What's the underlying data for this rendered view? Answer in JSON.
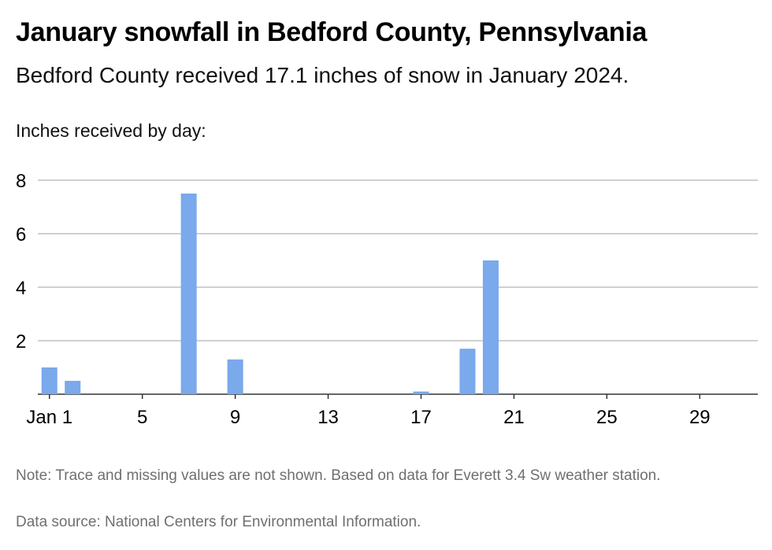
{
  "header": {
    "title": "January snowfall in Bedford County, Pennsylvania",
    "subtitle": "Bedford County received 17.1 inches of snow in January 2024."
  },
  "footer": {
    "note": "Note: Trace and missing values are not shown. Based on data for Everett 3.4 Sw weather station.",
    "source": "Data source: National Centers for Environmental Information."
  },
  "colors": {
    "bar": "#7aa9ec",
    "grid": "#b3b3b3",
    "axis": "#333333"
  },
  "chart_data": {
    "type": "bar",
    "ylabel": "Inches received by day:",
    "xlabel": "",
    "ylim": [
      0,
      8
    ],
    "yticks": [
      2,
      4,
      6,
      8
    ],
    "grid": true,
    "xtick_labels": [
      {
        "day": 1,
        "label": "Jan 1"
      },
      {
        "day": 5,
        "label": "5"
      },
      {
        "day": 9,
        "label": "9"
      },
      {
        "day": 13,
        "label": "13"
      },
      {
        "day": 17,
        "label": "17"
      },
      {
        "day": 21,
        "label": "21"
      },
      {
        "day": 25,
        "label": "25"
      },
      {
        "day": 29,
        "label": "29"
      }
    ],
    "categories": [
      1,
      2,
      3,
      4,
      5,
      6,
      7,
      8,
      9,
      10,
      11,
      12,
      13,
      14,
      15,
      16,
      17,
      18,
      19,
      20,
      21,
      22,
      23,
      24,
      25,
      26,
      27,
      28,
      29,
      30,
      31
    ],
    "values": [
      1.0,
      0.5,
      0,
      0,
      0,
      0,
      7.5,
      0,
      1.3,
      0,
      0,
      0,
      0,
      0,
      0,
      0,
      0.1,
      0,
      1.7,
      5.0,
      0,
      0,
      0,
      0,
      0,
      0,
      0,
      0,
      0,
      0,
      0
    ]
  }
}
